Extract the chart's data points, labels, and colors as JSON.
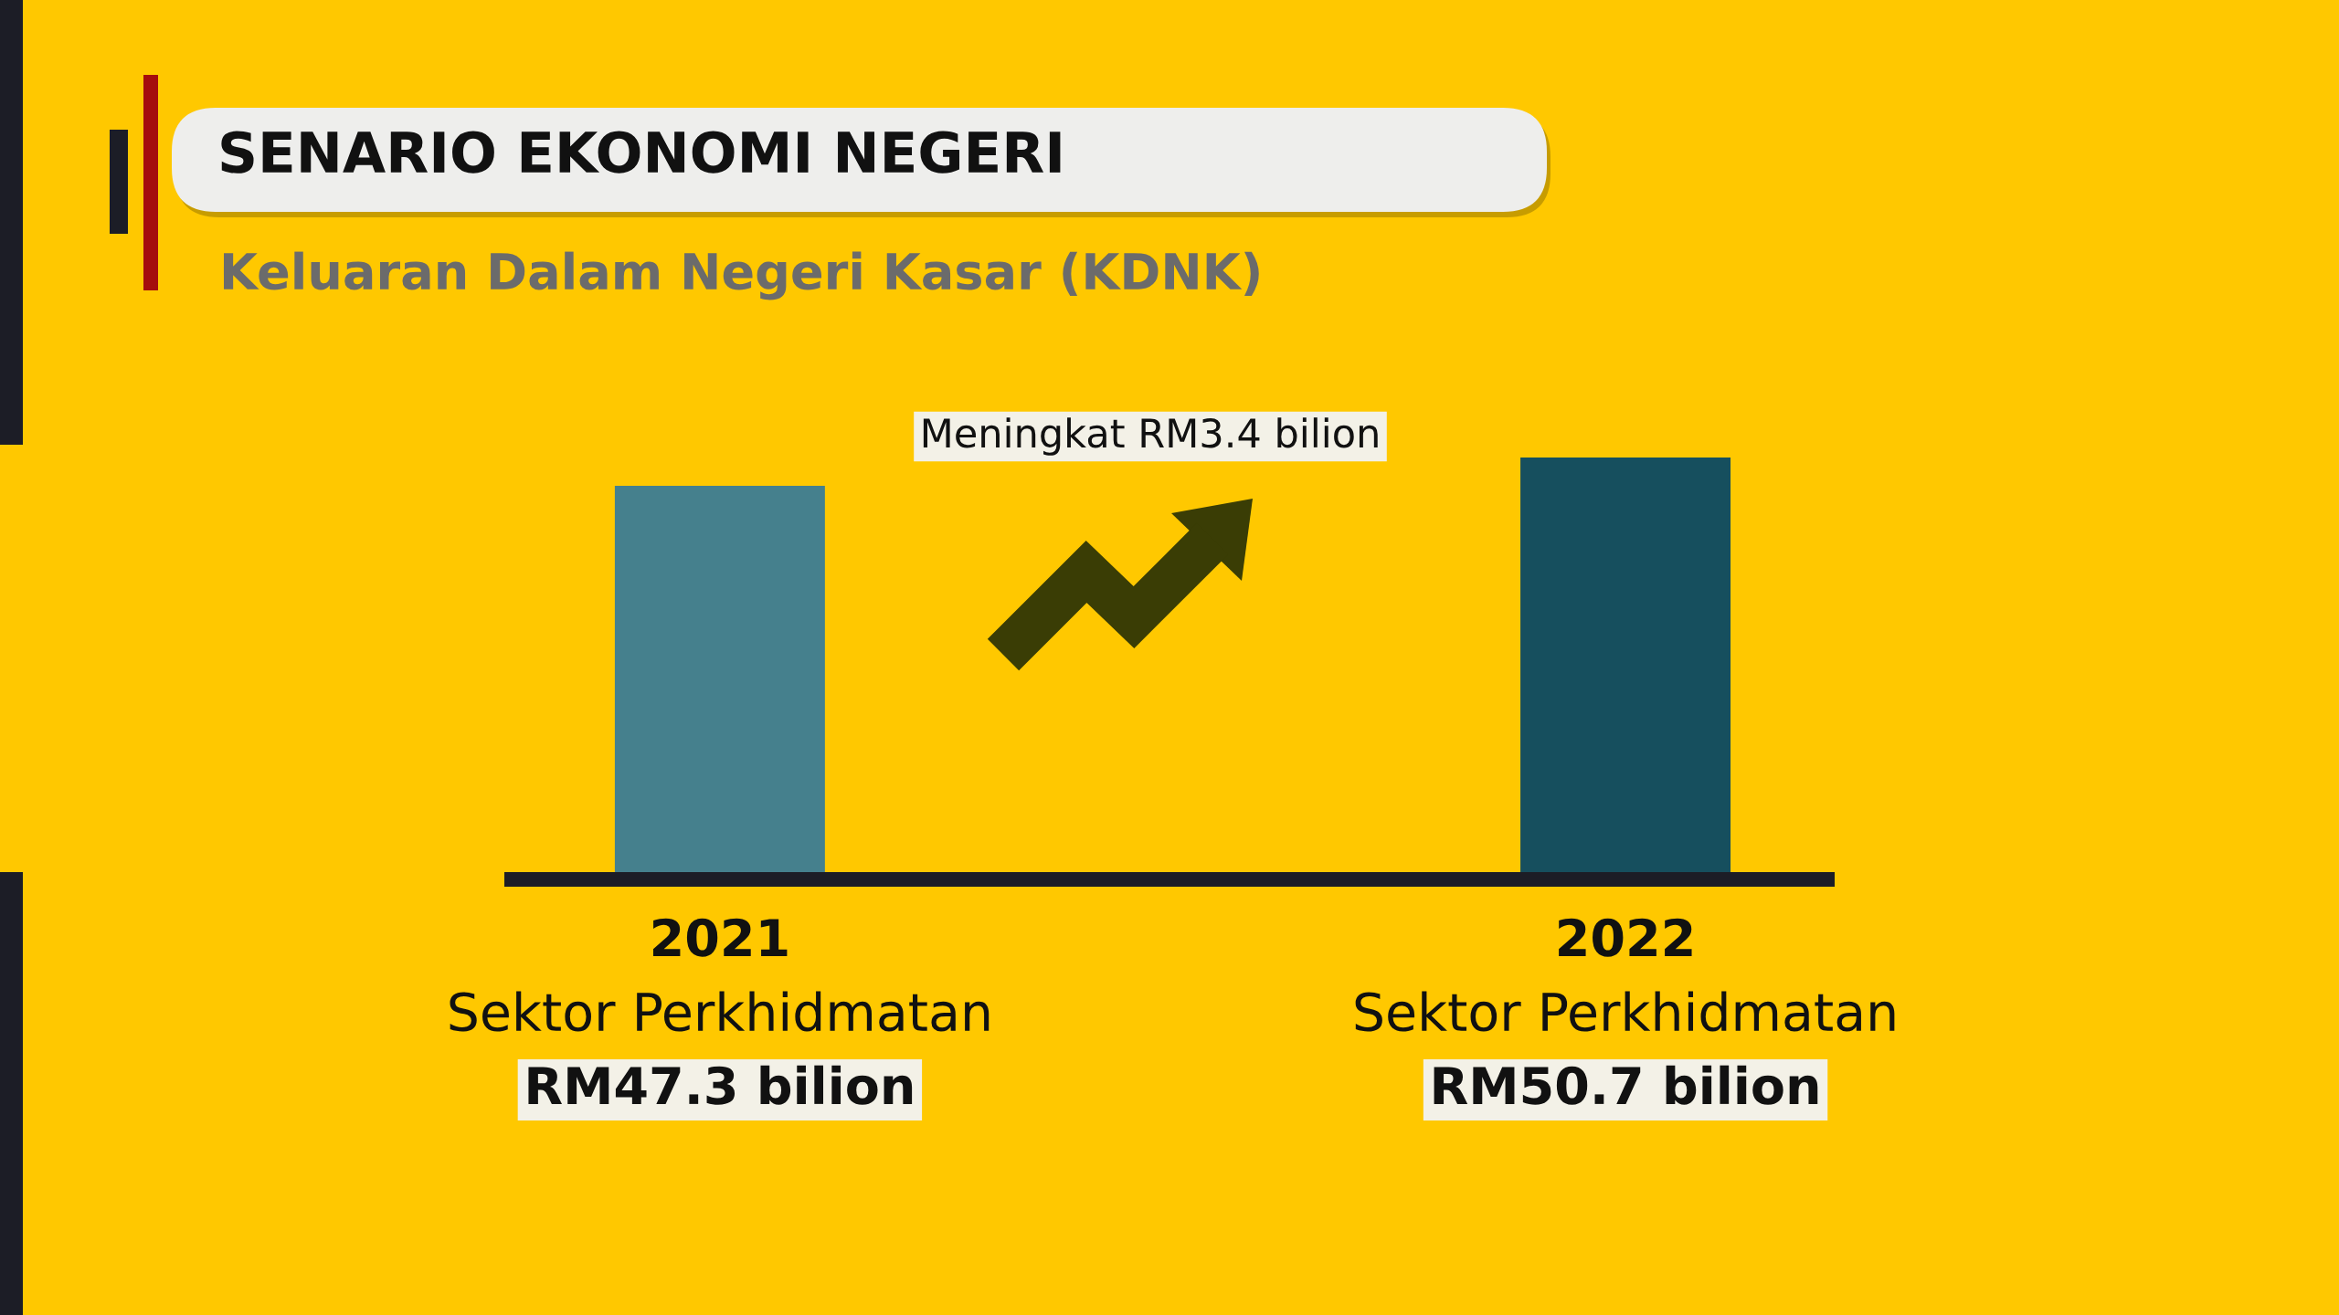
{
  "chart_data": {
    "type": "bar",
    "title": "SENARIO EKONOMI NEGERI",
    "subtitle": "Keluaran Dalam Negeri Kasar (KDNK)",
    "categories": [
      "2021\nSektor Perkhidmatan",
      "2022\nSektor Perkhidmatan"
    ],
    "values": [
      47.3,
      50.7
    ],
    "colors": [
      "#45808d",
      "#164f5e"
    ],
    "value_labels": [
      "RM47.3 bilion",
      "RM50.7 bilion"
    ],
    "annotations": [
      "Meningkat RM3.4 bilion"
    ],
    "tick_labels": "x"
  }
}
